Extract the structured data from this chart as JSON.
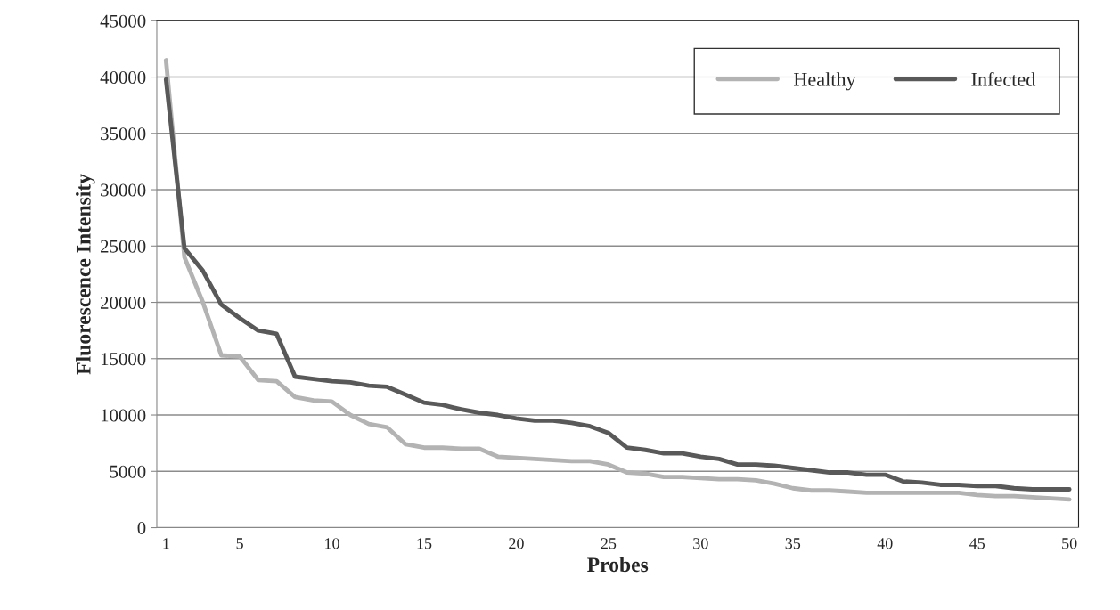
{
  "chart_data": {
    "type": "line",
    "xlabel": "Probes",
    "ylabel": "Fluorescence Intensity",
    "categories": [
      "1",
      null,
      null,
      null,
      "5",
      null,
      null,
      null,
      null,
      "10",
      null,
      null,
      null,
      null,
      "15",
      null,
      null,
      null,
      null,
      "20",
      null,
      null,
      null,
      null,
      "25",
      null,
      null,
      null,
      null,
      "30",
      null,
      null,
      null,
      null,
      "35",
      null,
      null,
      null,
      null,
      "40",
      null,
      null,
      null,
      null,
      "45",
      null,
      null,
      null,
      null,
      "50"
    ],
    "series": [
      {
        "name": "Healthy",
        "color": "#b3b3b3",
        "values": [
          41500,
          24000,
          20000,
          15300,
          15200,
          13100,
          13000,
          11600,
          11300,
          11200,
          10000,
          9200,
          8900,
          7400,
          7100,
          7100,
          7000,
          7000,
          6300,
          6200,
          6100,
          6000,
          5900,
          5900,
          5600,
          4900,
          4800,
          4500,
          4500,
          4400,
          4300,
          4300,
          4200,
          3900,
          3500,
          3300,
          3300,
          3200,
          3100,
          3100,
          3100,
          3100,
          3100,
          3100,
          2900,
          2800,
          2800,
          2700,
          2600,
          2500
        ]
      },
      {
        "name": "Infected",
        "color": "#595959",
        "values": [
          39800,
          24800,
          22800,
          19800,
          18600,
          17500,
          17200,
          13400,
          13200,
          13000,
          12900,
          12600,
          12500,
          11800,
          11100,
          10900,
          10500,
          10200,
          10000,
          9700,
          9500,
          9500,
          9300,
          9000,
          8400,
          7100,
          6900,
          6600,
          6600,
          6300,
          6100,
          5600,
          5600,
          5500,
          5300,
          5100,
          4900,
          4900,
          4700,
          4700,
          4100,
          4000,
          3800,
          3800,
          3700,
          3700,
          3500,
          3400,
          3400,
          3400
        ]
      }
    ],
    "ylim": [
      0,
      45000
    ],
    "yticks": [
      0,
      5000,
      10000,
      15000,
      20000,
      25000,
      30000,
      35000,
      40000,
      45000
    ],
    "grid": "y",
    "legend": "top right",
    "marker": "none",
    "line_style": "solid"
  }
}
